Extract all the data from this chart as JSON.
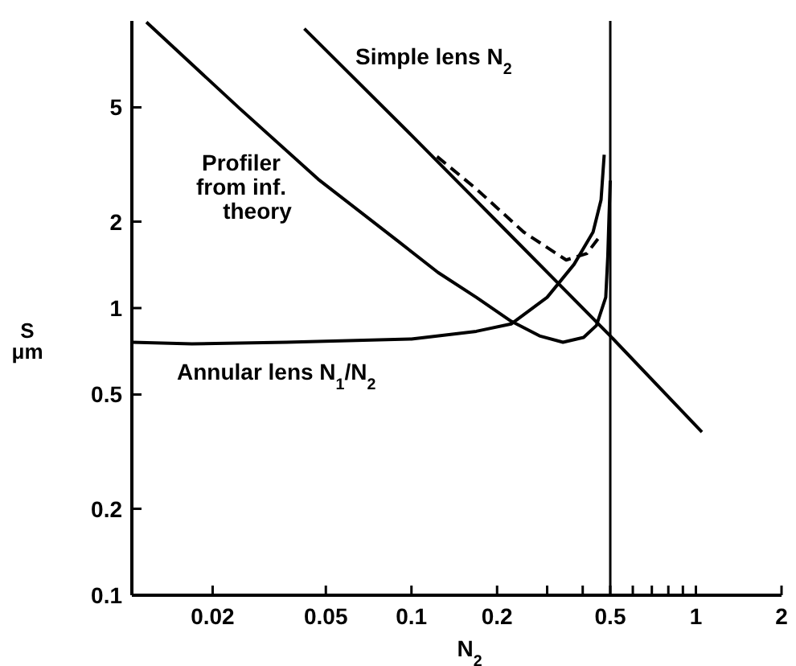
{
  "chart_data": {
    "type": "line",
    "xlabel": "N$_{2}$",
    "ylabel": "S μm",
    "log": "xy",
    "xlim": [
      0.0104,
      2
    ],
    "ylim": [
      0.1,
      10
    ],
    "xticks": [
      0.02,
      0.05,
      0.1,
      0.2,
      {
        "value": 0.3,
        "label": null
      },
      {
        "value": 0.4,
        "label": null
      },
      0.5,
      {
        "value": 0.6,
        "label": null
      },
      {
        "value": 0.7,
        "label": null
      },
      {
        "value": 0.8,
        "label": null
      },
      {
        "value": 0.9,
        "label": null
      },
      1,
      2
    ],
    "yticks": [
      0.1,
      0.2,
      0.5,
      1,
      2,
      5
    ],
    "grid": false,
    "ref_lines": [
      {
        "axis": "x",
        "value": 0.5,
        "color": "#000000"
      }
    ],
    "series": [
      {
        "name": "Simple lens N$_{2}$",
        "color": "#000000",
        "x": [
          0.042,
          0.1,
          0.2,
          0.5,
          1.05
        ],
        "values": [
          9.4,
          4.0,
          2.0,
          0.8,
          0.37
        ]
      },
      {
        "color": "#000000",
        "line_style": "dashed",
        "x": [
          0.123,
          0.169,
          0.248,
          0.35,
          0.414,
          0.458
        ],
        "values": [
          3.37,
          2.6,
          1.84,
          1.47,
          1.55,
          1.77
        ]
      },
      {
        "name": "Profiler from inf. theory",
        "color": "#000000",
        "x": [
          0.0117,
          0.0248,
          0.047,
          0.089,
          0.124,
          0.169,
          0.224,
          0.282,
          0.341,
          0.403,
          0.447,
          0.482,
          0.49,
          0.495,
          0.5
        ],
        "values": [
          9.9,
          4.97,
          2.81,
          1.72,
          1.33,
          1.09,
          0.9,
          0.8,
          0.76,
          0.79,
          0.87,
          1.09,
          1.51,
          2.09,
          2.78
        ]
      },
      {
        "name": "Annular lens N$_{1}$/N$_{2}$",
        "color": "#000000",
        "x": [
          0.0104,
          0.0169,
          0.0364,
          0.1,
          0.169,
          0.224,
          0.3,
          0.373,
          0.435,
          0.464,
          0.476
        ],
        "values": [
          0.76,
          0.75,
          0.76,
          0.78,
          0.83,
          0.88,
          1.09,
          1.42,
          1.84,
          2.38,
          3.42
        ]
      }
    ]
  }
}
